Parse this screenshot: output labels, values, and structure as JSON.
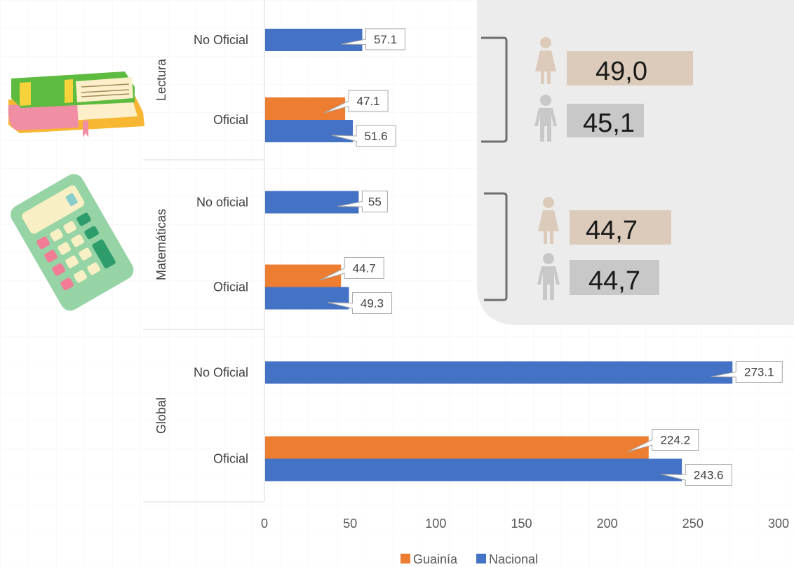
{
  "chart_data": {
    "type": "bar",
    "orientation": "horizontal",
    "xlim": [
      0,
      300
    ],
    "x_ticks": [
      "0",
      "50",
      "100",
      "150",
      "200",
      "250",
      "300"
    ],
    "grid": false,
    "legend_position": "bottom",
    "groups": [
      {
        "name": "Lectura",
        "categories": [
          {
            "label": "No Oficial",
            "values": {
              "Guainía": null,
              "Nacional": 57.1
            }
          },
          {
            "label": "Oficial",
            "values": {
              "Guainía": 47.1,
              "Nacional": 51.6
            }
          }
        ]
      },
      {
        "name": "Matemáticas",
        "categories": [
          {
            "label": "No oficial",
            "values": {
              "Guainía": null,
              "Nacional": 55
            }
          },
          {
            "label": "Oficial",
            "values": {
              "Guainía": 44.7,
              "Nacional": 49.3
            }
          }
        ]
      },
      {
        "name": "Global",
        "categories": [
          {
            "label": "No Oficial",
            "values": {
              "Guainía": null,
              "Nacional": 273.1
            }
          },
          {
            "label": "Oficial",
            "values": {
              "Guainía": 224.2,
              "Nacional": 243.6
            }
          }
        ]
      }
    ],
    "series": [
      {
        "name": "Guainía",
        "color": "#ED7D31"
      },
      {
        "name": "Nacional",
        "color": "#4472C4"
      }
    ],
    "gender_panel": {
      "lectura": {
        "female": "49,0",
        "male": "45,1"
      },
      "matematicas": {
        "female": "44,7",
        "male": "44,7"
      },
      "female_color": "#DCCBBA",
      "male_color": "#C8C8C8",
      "female_icon": "female-person-icon",
      "male_icon": "male-person-icon"
    },
    "decorations": [
      "books-icon",
      "calculator-icon"
    ]
  }
}
